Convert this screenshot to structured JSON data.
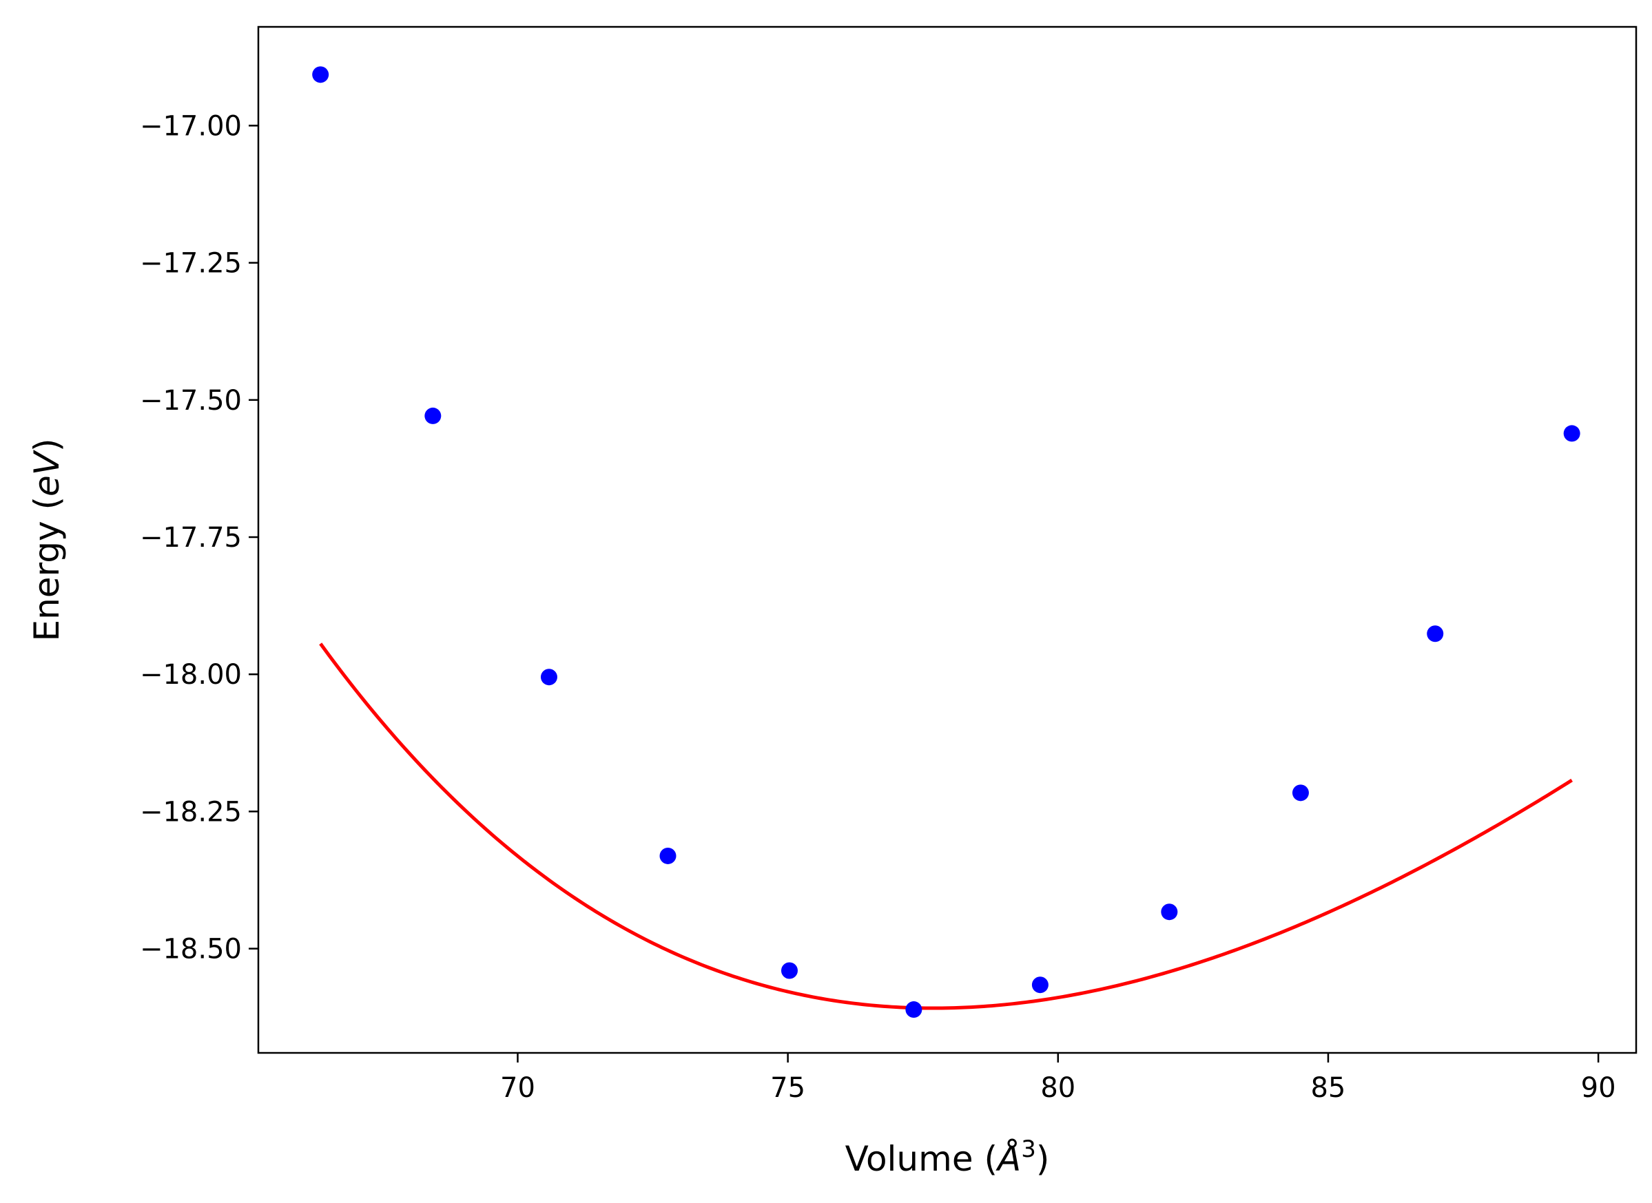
{
  "chart_data": {
    "type": "scatter",
    "title": "",
    "xlabel": {
      "prefix": "Volume (",
      "var": "Å",
      "sup": "3",
      "suffix": ")"
    },
    "ylabel": {
      "prefix": "Energy (",
      "var": "eV",
      "suffix": ")"
    },
    "xlim": [
      65.2,
      90.7
    ],
    "ylim": [
      -18.69,
      -16.82
    ],
    "xticks": [
      70,
      75,
      80,
      85,
      90
    ],
    "xtick_labels": [
      "70",
      "75",
      "80",
      "85",
      "90"
    ],
    "yticks": [
      -17.0,
      -17.25,
      -17.5,
      -17.75,
      -18.0,
      -18.25,
      -18.5
    ],
    "ytick_labels": [
      "−17.00",
      "−17.25",
      "−17.50",
      "−17.75",
      "−18.00",
      "−18.25",
      "−18.50"
    ],
    "grid": false,
    "legend": "none",
    "series": [
      {
        "kind": "points",
        "color": "#0000ff",
        "x": [
          66.35,
          68.43,
          70.58,
          72.78,
          75.03,
          77.33,
          79.67,
          82.06,
          84.49,
          86.98,
          89.51
        ],
        "y": [
          -16.907,
          -17.529,
          -18.005,
          -18.331,
          -18.54,
          -18.611,
          -18.566,
          -18.433,
          -18.216,
          -17.926,
          -17.561
        ]
      },
      {
        "kind": "fit-curve",
        "color": "#ff0000",
        "fit": {
          "E0": -18.6085,
          "V0": 77.7,
          "B0": 0.6,
          "B0p": 4.5
        },
        "xrange": [
          66.35,
          89.51
        ]
      }
    ]
  }
}
